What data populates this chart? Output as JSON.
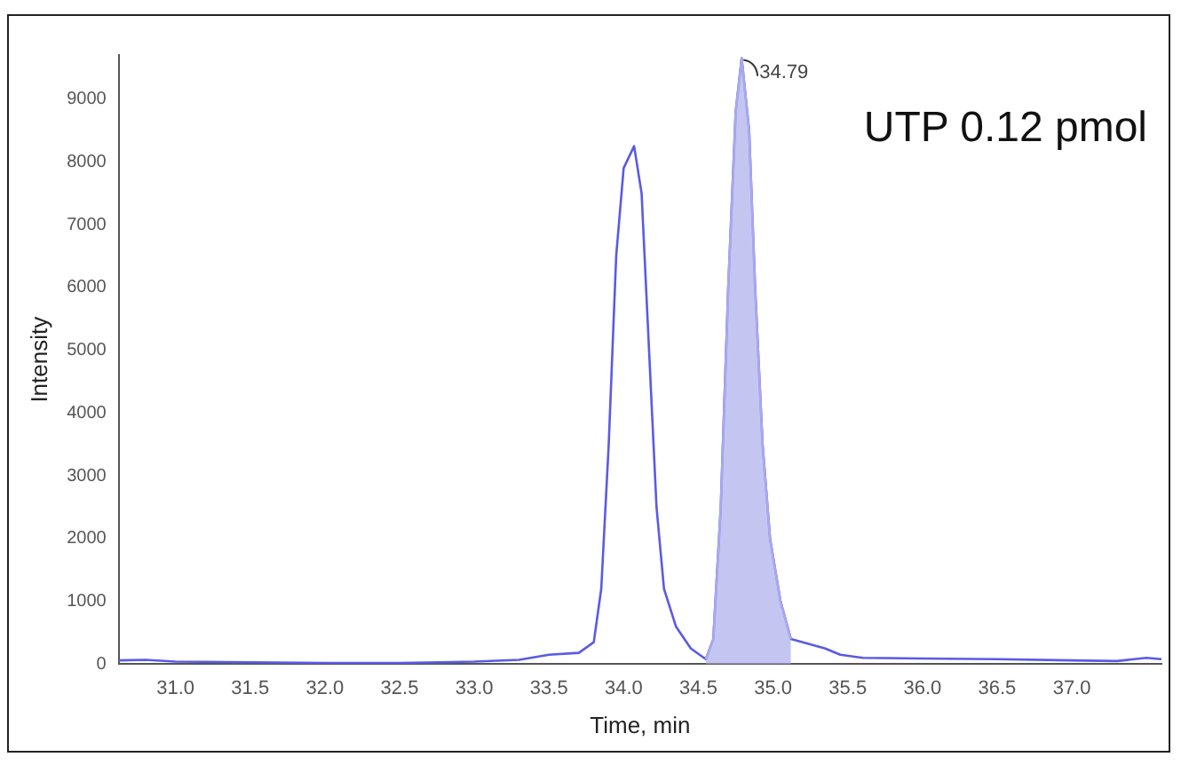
{
  "chart_data": {
    "type": "line",
    "xlabel": "Time, min",
    "ylabel": "Intensity",
    "annotations": [
      "UTP 0.12 pmol",
      {
        "text": "34.79",
        "x": 34.79,
        "y": 9650
      }
    ],
    "xlim": [
      30.62,
      37.6
    ],
    "ylim": [
      0,
      9700
    ],
    "xticks": [
      {
        "value": 31,
        "label": "31.0"
      },
      {
        "value": 31.5,
        "label": "31.5"
      },
      {
        "value": 32,
        "label": "32.0"
      },
      {
        "value": 32.5,
        "label": "32.5"
      },
      {
        "value": 33,
        "label": "33.0"
      },
      {
        "value": 33.5,
        "label": "33.5"
      },
      {
        "value": 34,
        "label": "34.0"
      },
      {
        "value": 34.5,
        "label": "34.5"
      },
      {
        "value": 35,
        "label": "35.0"
      },
      {
        "value": 35.5,
        "label": "35.5"
      },
      {
        "value": 36,
        "label": "36.0"
      },
      {
        "value": 36.5,
        "label": "36.5"
      },
      {
        "value": 37,
        "label": "37.0"
      }
    ],
    "yticks": [
      0,
      1000,
      2000,
      3000,
      4000,
      5000,
      6000,
      7000,
      8000,
      9000
    ],
    "grid": false,
    "legend": false,
    "marker": "none",
    "line_style": "solid",
    "series": [
      {
        "type": "area",
        "color": "#a8a8ec",
        "x": [
          34.55,
          34.6,
          34.65,
          34.7,
          34.75,
          34.79,
          34.84,
          34.88,
          34.93,
          34.98,
          35.05,
          35.12
        ],
        "values": [
          80,
          400,
          2500,
          6000,
          8800,
          9650,
          8500,
          6000,
          3500,
          2000,
          1000,
          400
        ]
      },
      {
        "color": "#5a5ae6",
        "x": [
          30.62,
          30.8,
          31.0,
          31.5,
          32.0,
          32.5,
          33.0,
          33.3,
          33.5,
          33.7,
          33.8,
          33.85,
          33.9,
          33.95,
          34.0,
          34.07,
          34.12,
          34.17,
          34.22,
          34.27,
          34.35,
          34.45,
          34.55,
          34.6,
          34.65,
          34.7,
          34.75,
          34.79,
          34.84,
          34.88,
          34.93,
          34.98,
          35.05,
          35.12,
          35.2,
          35.35,
          35.45,
          35.6,
          36.0,
          36.5,
          37.0,
          37.3,
          37.5,
          37.6
        ],
        "values": [
          60,
          70,
          40,
          30,
          20,
          20,
          40,
          70,
          150,
          180,
          350,
          1200,
          3500,
          6500,
          7900,
          8250,
          7500,
          5000,
          2500,
          1200,
          600,
          250,
          80,
          400,
          2500,
          6000,
          8800,
          9650,
          8500,
          6000,
          3500,
          2000,
          1000,
          400,
          350,
          250,
          150,
          100,
          90,
          80,
          60,
          50,
          100,
          80
        ]
      }
    ]
  }
}
